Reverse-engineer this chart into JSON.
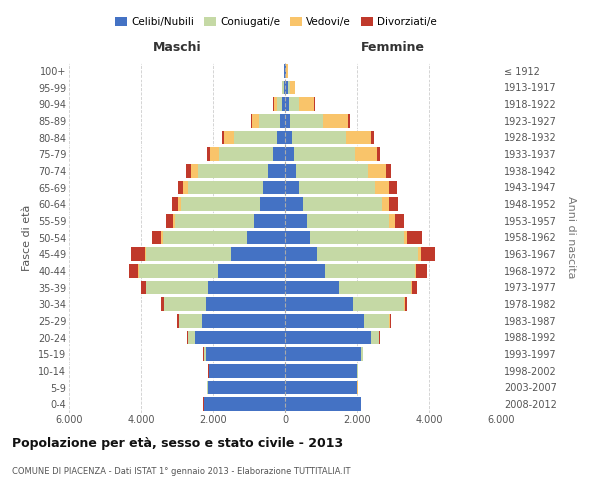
{
  "age_groups": [
    "0-4",
    "5-9",
    "10-14",
    "15-19",
    "20-24",
    "25-29",
    "30-34",
    "35-39",
    "40-44",
    "45-49",
    "50-54",
    "55-59",
    "60-64",
    "65-69",
    "70-74",
    "75-79",
    "80-84",
    "85-89",
    "90-94",
    "95-99",
    "100+"
  ],
  "birth_years": [
    "2008-2012",
    "2003-2007",
    "1998-2002",
    "1993-1997",
    "1988-1992",
    "1983-1987",
    "1978-1982",
    "1973-1977",
    "1968-1972",
    "1963-1967",
    "1958-1962",
    "1953-1957",
    "1948-1952",
    "1943-1947",
    "1938-1942",
    "1933-1937",
    "1928-1932",
    "1923-1927",
    "1918-1922",
    "1913-1917",
    "≤ 1912"
  ],
  "males_celibe": [
    2250,
    2150,
    2100,
    2200,
    2500,
    2300,
    2200,
    2150,
    1850,
    1500,
    1050,
    850,
    700,
    600,
    480,
    320,
    220,
    130,
    80,
    40,
    20
  ],
  "males_coniugato": [
    5,
    10,
    20,
    55,
    200,
    650,
    1150,
    1700,
    2200,
    2350,
    2350,
    2200,
    2200,
    2100,
    1950,
    1500,
    1200,
    580,
    150,
    30,
    10
  ],
  "males_vedovo": [
    5,
    5,
    5,
    5,
    5,
    5,
    10,
    10,
    20,
    30,
    40,
    55,
    80,
    120,
    190,
    270,
    280,
    200,
    80,
    20,
    5
  ],
  "males_divorziato": [
    5,
    5,
    5,
    10,
    20,
    45,
    90,
    150,
    250,
    400,
    250,
    190,
    170,
    150,
    130,
    80,
    50,
    30,
    10,
    5,
    0
  ],
  "females_nubile": [
    2100,
    2000,
    2000,
    2100,
    2400,
    2200,
    1900,
    1500,
    1100,
    900,
    700,
    600,
    500,
    400,
    300,
    250,
    200,
    150,
    100,
    80,
    30
  ],
  "females_coniugata": [
    5,
    10,
    20,
    60,
    200,
    700,
    1400,
    2000,
    2500,
    2800,
    2600,
    2300,
    2200,
    2100,
    2000,
    1700,
    1500,
    900,
    300,
    50,
    10
  ],
  "females_vedova": [
    5,
    5,
    5,
    5,
    5,
    10,
    20,
    30,
    50,
    80,
    100,
    150,
    200,
    400,
    500,
    600,
    700,
    700,
    400,
    150,
    30
  ],
  "females_divorziata": [
    5,
    5,
    5,
    10,
    20,
    40,
    80,
    150,
    300,
    400,
    400,
    250,
    250,
    200,
    150,
    100,
    80,
    50,
    20,
    10,
    0
  ],
  "color_celibe": "#4472C4",
  "color_coniugato": "#C5D9A5",
  "color_vedovo": "#F9C46A",
  "color_divorziato": "#C0392B",
  "legend_labels": [
    "Celibi/Nubili",
    "Coniugati/e",
    "Vedovi/e",
    "Divorziati/e"
  ],
  "title": "Popolazione per età, sesso e stato civile - 2013",
  "subtitle": "COMUNE DI PIACENZA - Dati ISTAT 1° gennaio 2013 - Elaborazione TUTTITALIA.IT",
  "label_maschi": "Maschi",
  "label_femmine": "Femmine",
  "label_fasce": "Fasce di età",
  "label_anni": "Anni di nascita",
  "xlim": 6000,
  "bg_color": "#ffffff",
  "grid_color": "#c8c8c8"
}
